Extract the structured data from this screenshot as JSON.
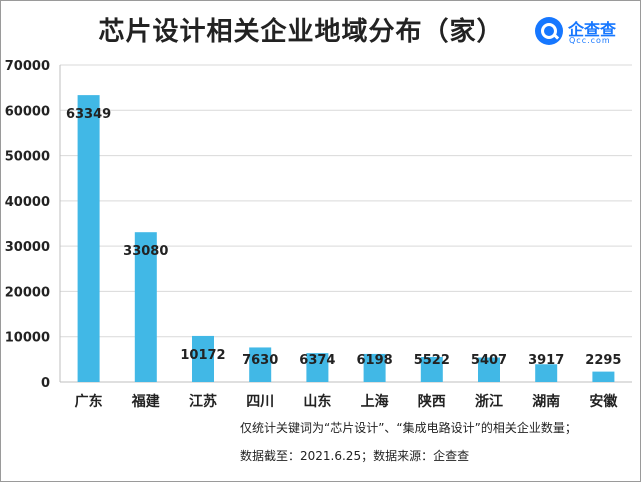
{
  "title": "芯片设计相关企业地域分布（家）",
  "logo": {
    "text": "企查查",
    "subtext": "Qcc.com"
  },
  "notes": {
    "line1": "仅统计关键词为“芯片设计”、“集成电路设计”的相关企业数量；",
    "line2": "数据截至：2021.6.25；数据来源：企查查"
  },
  "colors": {
    "bar": "#41b8e6",
    "grid": "#d9d9d9",
    "axis": "#bfbfbf",
    "text": "#222222"
  },
  "chart_data": {
    "type": "bar",
    "title": "芯片设计相关企业地域分布（家）",
    "categories": [
      "广东",
      "福建",
      "江苏",
      "四川",
      "山东",
      "上海",
      "陕西",
      "浙江",
      "湖南",
      "安徽"
    ],
    "values": [
      63349,
      33080,
      10172,
      7630,
      6374,
      6198,
      5522,
      5407,
      3917,
      2295
    ],
    "value_labels": [
      "63349",
      "33080",
      "10172",
      "7630",
      "6374",
      "6198",
      "5522",
      "5407",
      "3917",
      "2295"
    ],
    "ylim": [
      0,
      70000
    ],
    "yticks": [
      0,
      10000,
      20000,
      30000,
      40000,
      50000,
      60000,
      70000
    ],
    "ytick_labels": [
      "0",
      "10000",
      "20000",
      "30000",
      "40000",
      "50000",
      "60000",
      "70000"
    ],
    "xlabel": "",
    "ylabel": "",
    "grid": true,
    "legend": "none"
  }
}
